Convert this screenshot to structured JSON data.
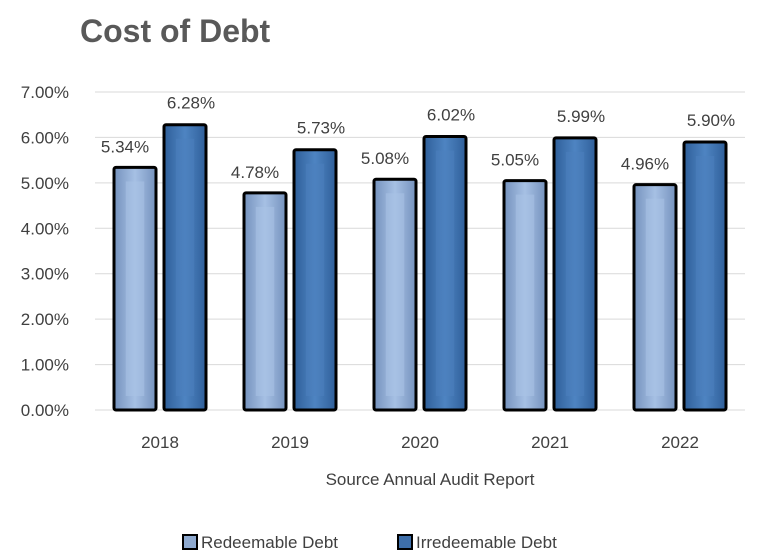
{
  "chart_data": {
    "type": "bar",
    "title": "Cost of Debt",
    "xlabel": "Source Annual Audit Report",
    "ylabel": "",
    "categories": [
      "2018",
      "2019",
      "2020",
      "2021",
      "2022"
    ],
    "series": [
      {
        "name": "Redeemable Debt",
        "values": [
          5.34,
          4.78,
          5.08,
          5.05,
          4.96
        ],
        "labels": [
          "5.34%",
          "4.78%",
          "5.08%",
          "5.05%",
          "4.96%"
        ],
        "color": "#8FAAD0"
      },
      {
        "name": "Irredeemable Debt",
        "values": [
          6.28,
          5.73,
          6.02,
          5.99,
          5.9
        ],
        "labels": [
          "6.28%",
          "5.73%",
          "6.02%",
          "5.99%",
          "5.90%"
        ],
        "color": "#3E6FAA"
      }
    ],
    "ylim": [
      0,
      7
    ],
    "yticks": [
      "0.00%",
      "1.00%",
      "2.00%",
      "3.00%",
      "4.00%",
      "5.00%",
      "6.00%",
      "7.00%"
    ],
    "grid": true,
    "legend": "bottom"
  }
}
